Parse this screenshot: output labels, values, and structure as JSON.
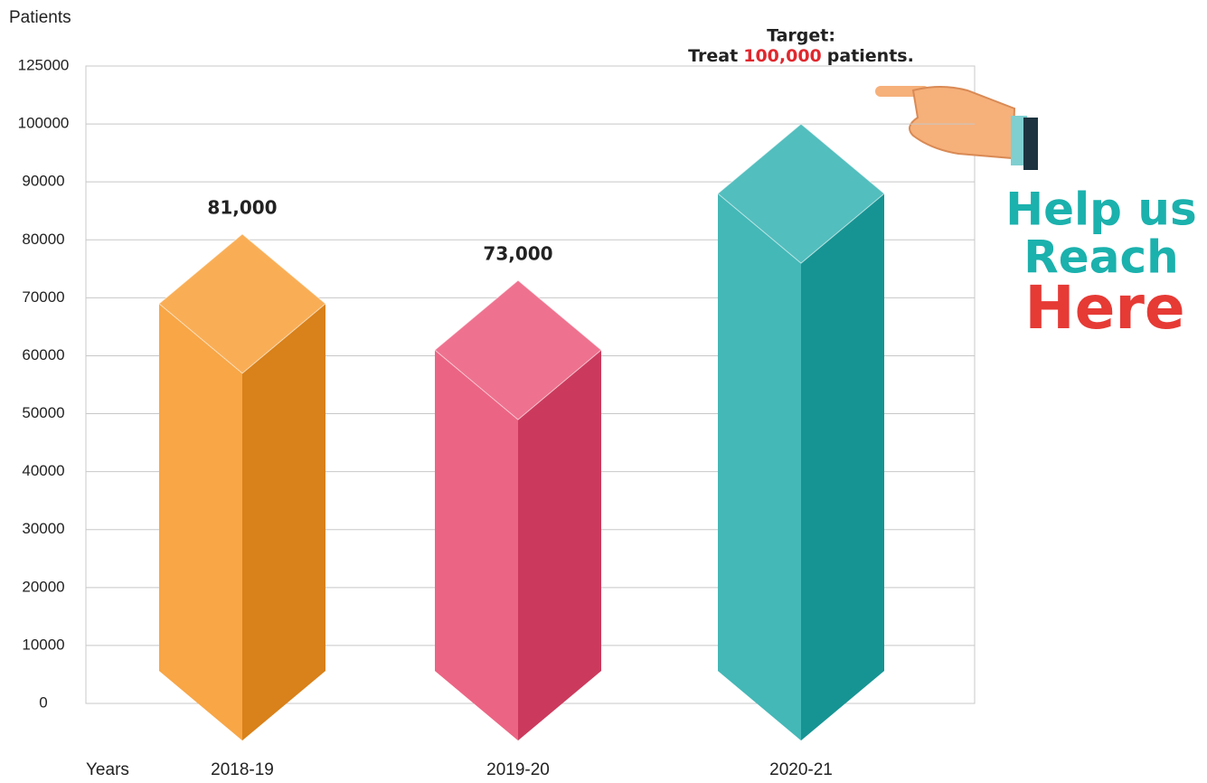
{
  "chart_data": {
    "type": "bar",
    "y_label": "Patients",
    "x_label": "Years",
    "categories": [
      "2018-19",
      "2019-20",
      "2020-21"
    ],
    "values": [
      81000,
      73000,
      100000
    ],
    "value_labels": [
      "81,000",
      "73,000",
      null
    ],
    "colors": [
      "#f7931e",
      "#e8436a",
      "#1aa9a8"
    ],
    "ylim": [
      0,
      125000
    ],
    "yticks": [
      0,
      10000,
      20000,
      30000,
      40000,
      50000,
      60000,
      70000,
      80000,
      90000,
      100000,
      125000
    ],
    "grid": true,
    "annotation": {
      "title": "Target:",
      "prefix": "Treat",
      "highlight": "100,000",
      "suffix": "patients."
    },
    "callout": [
      "Help us",
      "Reach",
      "Here"
    ]
  }
}
